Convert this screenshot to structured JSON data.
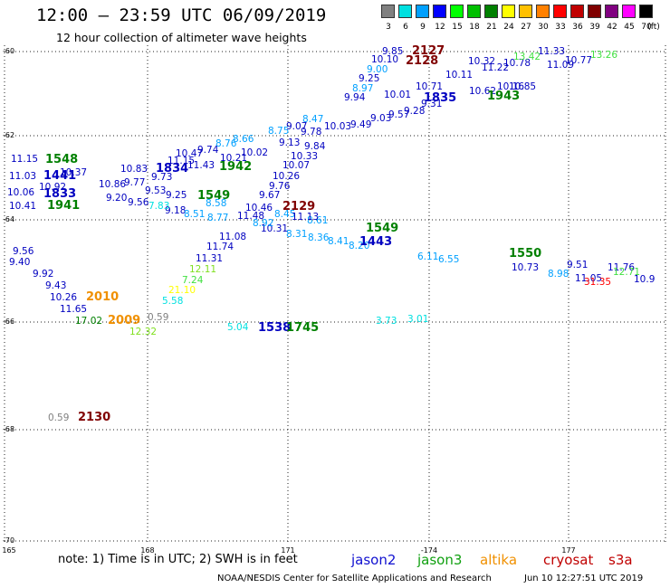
{
  "header": {
    "title": "12:00 – 23:59 UTC 06/09/2019",
    "subtitle": "12 hour collection of altimeter wave heights"
  },
  "colorbar": {
    "unit": "(ft)",
    "items": [
      {
        "label": "3",
        "color": "#808080"
      },
      {
        "label": "6",
        "color": "#00e0e0"
      },
      {
        "label": "9",
        "color": "#00a0ff"
      },
      {
        "label": "12",
        "color": "#0000ff"
      },
      {
        "label": "15",
        "color": "#00ff00"
      },
      {
        "label": "18",
        "color": "#00c000"
      },
      {
        "label": "21",
        "color": "#008000"
      },
      {
        "label": "24",
        "color": "#ffff00"
      },
      {
        "label": "27",
        "color": "#ffc000"
      },
      {
        "label": "30",
        "color": "#ff8000"
      },
      {
        "label": "33",
        "color": "#ff0000"
      },
      {
        "label": "36",
        "color": "#c00000"
      },
      {
        "label": "39",
        "color": "#800000"
      },
      {
        "label": "42",
        "color": "#800080"
      },
      {
        "label": "45",
        "color": "#ff00ff"
      },
      {
        "label": "70",
        "color": "#000000"
      }
    ]
  },
  "axes": {
    "lat_labels": [
      "-60",
      "-62",
      "-64",
      "-66",
      "-68",
      "-70"
    ],
    "lon_labels": [
      "165",
      "168",
      "171",
      "-174",
      "177"
    ]
  },
  "footer": {
    "note": "note: 1) Time is in UTC; 2) SWH is in feet",
    "satellites": [
      {
        "name": "jason2",
        "color": "#1010d0"
      },
      {
        "name": "jason3",
        "color": "#10a010"
      },
      {
        "name": "altika",
        "color": "#f09000"
      },
      {
        "name": "cryosat",
        "color": "#c00000"
      },
      {
        "name": "s3a",
        "color": "#c00000"
      }
    ],
    "credit": "NOAA/NESDIS Center for Satellite Applications and Research",
    "timestamp": "Jun 10 12:27:51 UTC 2019"
  },
  "tracks": {
    "times": [
      {
        "text": "2127",
        "color": "#800000"
      },
      {
        "text": "2128",
        "color": "#800000"
      },
      {
        "text": "1548",
        "color": "#008000"
      },
      {
        "text": "1441",
        "color": "#0000c0"
      },
      {
        "text": "1834",
        "color": "#0000c0"
      },
      {
        "text": "1942",
        "color": "#008000"
      },
      {
        "text": "1835",
        "color": "#0000c0"
      },
      {
        "text": "1943",
        "color": "#008000"
      },
      {
        "text": "1833",
        "color": "#0000c0"
      },
      {
        "text": "1941",
        "color": "#008000"
      },
      {
        "text": "1549",
        "color": "#008000"
      },
      {
        "text": "2129",
        "color": "#800000"
      },
      {
        "text": "1549",
        "color": "#008000"
      },
      {
        "text": "1443",
        "color": "#0000c0"
      },
      {
        "text": "1550",
        "color": "#008000"
      },
      {
        "text": "2010",
        "color": "#f09000"
      },
      {
        "text": "2009",
        "color": "#f09000"
      },
      {
        "text": "1538",
        "color": "#0000c0"
      },
      {
        "text": "1745",
        "color": "#008000"
      },
      {
        "text": "2130",
        "color": "#800000"
      }
    ],
    "swh_values": [
      {
        "text": "9.85",
        "color": "#0000c0"
      },
      {
        "text": "10.10",
        "color": "#0000c0"
      },
      {
        "text": "9.00",
        "color": "#00a0ff"
      },
      {
        "text": "9.25",
        "color": "#0000c0"
      },
      {
        "text": "8.97",
        "color": "#00a0ff"
      },
      {
        "text": "9.94",
        "color": "#0000c0"
      },
      {
        "text": "10.78",
        "color": "#0000c0"
      },
      {
        "text": "11.33",
        "color": "#0000c0"
      },
      {
        "text": "13.42",
        "color": "#40e040"
      },
      {
        "text": "13.26",
        "color": "#40e040"
      },
      {
        "text": "10.77",
        "color": "#0000c0"
      },
      {
        "text": "11.09",
        "color": "#0000c0"
      },
      {
        "text": "11.22",
        "color": "#0000c0"
      },
      {
        "text": "10.85",
        "color": "#0000c0"
      },
      {
        "text": "10.16",
        "color": "#0000c0"
      },
      {
        "text": "10.62",
        "color": "#0000c0"
      },
      {
        "text": "9.57",
        "color": "#0000c0"
      },
      {
        "text": "9.28",
        "color": "#0000c0"
      },
      {
        "text": "9.31",
        "color": "#0000c0"
      },
      {
        "text": "11.15",
        "color": "#0000c0"
      },
      {
        "text": "11.03",
        "color": "#0000c0"
      },
      {
        "text": "10.06",
        "color": "#0000c0"
      },
      {
        "text": "10.41",
        "color": "#0000c0"
      },
      {
        "text": "10.83",
        "color": "#0000c0"
      },
      {
        "text": "11.15",
        "color": "#0000c0"
      },
      {
        "text": "10.47",
        "color": "#0000c0"
      },
      {
        "text": "9.74",
        "color": "#0000c0"
      },
      {
        "text": "8.76",
        "color": "#00a0ff"
      },
      {
        "text": "8.66",
        "color": "#00a0ff"
      },
      {
        "text": "9.73",
        "color": "#0000c0"
      },
      {
        "text": "10.21",
        "color": "#0000c0"
      },
      {
        "text": "10.02",
        "color": "#0000c0"
      },
      {
        "text": "9.53",
        "color": "#0000c0"
      },
      {
        "text": "9.25",
        "color": "#0000c0"
      },
      {
        "text": "9.18",
        "color": "#0000c0"
      },
      {
        "text": "9.20",
        "color": "#0000c0"
      },
      {
        "text": "9.56",
        "color": "#0000c0"
      },
      {
        "text": "7.83",
        "color": "#00e0e0"
      },
      {
        "text": "8.51",
        "color": "#00a0ff"
      },
      {
        "text": "8.58",
        "color": "#00a0ff"
      },
      {
        "text": "8.77",
        "color": "#00a0ff"
      },
      {
        "text": "9.67",
        "color": "#0000c0"
      },
      {
        "text": "9.76",
        "color": "#0000c0"
      },
      {
        "text": "10.26",
        "color": "#0000c0"
      },
      {
        "text": "10.07",
        "color": "#0000c0"
      },
      {
        "text": "10.33",
        "color": "#0000c0"
      },
      {
        "text": "9.84",
        "color": "#0000c0"
      },
      {
        "text": "9.13",
        "color": "#0000c0"
      },
      {
        "text": "9.07",
        "color": "#0000c0"
      },
      {
        "text": "8.75",
        "color": "#00a0ff"
      },
      {
        "text": "10.46",
        "color": "#0000c0"
      },
      {
        "text": "11.48",
        "color": "#0000c0"
      },
      {
        "text": "11.08",
        "color": "#0000c0"
      },
      {
        "text": "11.74",
        "color": "#0000c0"
      },
      {
        "text": "11.31",
        "color": "#0000c0"
      },
      {
        "text": "12.11",
        "color": "#80e020"
      },
      {
        "text": "7.24",
        "color": "#40e040"
      },
      {
        "text": "21.10",
        "color": "#ffff00"
      },
      {
        "text": "5.58",
        "color": "#00e0e0"
      },
      {
        "text": "10.31",
        "color": "#0000c0"
      },
      {
        "text": "8.31",
        "color": "#00a0ff"
      },
      {
        "text": "8.36",
        "color": "#00a0ff"
      },
      {
        "text": "8.41",
        "color": "#00a0ff"
      },
      {
        "text": "8.20",
        "color": "#00a0ff"
      },
      {
        "text": "8.61",
        "color": "#00a0ff"
      },
      {
        "text": "6.11",
        "color": "#00a0ff"
      },
      {
        "text": "6.55",
        "color": "#00a0ff"
      },
      {
        "text": "10.73",
        "color": "#0000c0"
      },
      {
        "text": "8.98",
        "color": "#00a0ff"
      },
      {
        "text": "9.51",
        "color": "#0000c0"
      },
      {
        "text": "11.05",
        "color": "#0000c0"
      },
      {
        "text": "11.76",
        "color": "#0000c0"
      },
      {
        "text": "31.35",
        "color": "#ff0000"
      },
      {
        "text": "12.71",
        "color": "#40e040"
      },
      {
        "text": "10.9",
        "color": "#0000c0"
      },
      {
        "text": "9.56",
        "color": "#0000c0"
      },
      {
        "text": "9.40",
        "color": "#0000c0"
      },
      {
        "text": "9.92",
        "color": "#0000c0"
      },
      {
        "text": "9.43",
        "color": "#0000c0"
      },
      {
        "text": "10.26",
        "color": "#0000c0"
      },
      {
        "text": "11.65",
        "color": "#0000c0"
      },
      {
        "text": "17.02",
        "color": "#008000"
      },
      {
        "text": "12.32",
        "color": "#80e020"
      },
      {
        "text": "0.59",
        "color": "#808080"
      },
      {
        "text": "0.59",
        "color": "#808080"
      },
      {
        "text": "5.04",
        "color": "#00e0e0"
      },
      {
        "text": "3.73",
        "color": "#00e0e0"
      },
      {
        "text": "3.01",
        "color": "#00e0e0"
      },
      {
        "text": "8.47",
        "color": "#00a0ff"
      },
      {
        "text": "9.78",
        "color": "#0000c0"
      },
      {
        "text": "10.03",
        "color": "#0000c0"
      },
      {
        "text": "9.49",
        "color": "#0000c0"
      },
      {
        "text": "9.03",
        "color": "#0000c0"
      },
      {
        "text": "10.01",
        "color": "#0000c0"
      },
      {
        "text": "10.71",
        "color": "#0000c0"
      },
      {
        "text": "10.11",
        "color": "#0000c0"
      },
      {
        "text": "10.32",
        "color": "#0000c0"
      },
      {
        "text": "11.43",
        "color": "#0000c0"
      },
      {
        "text": "10.37",
        "color": "#0000c0"
      },
      {
        "text": "10.92",
        "color": "#0000c0"
      },
      {
        "text": "10.86",
        "color": "#0000c0"
      },
      {
        "text": "9.77",
        "color": "#0000c0"
      },
      {
        "text": "8.45",
        "color": "#00a0ff"
      },
      {
        "text": "8.92",
        "color": "#00a0ff"
      },
      {
        "text": "11.13",
        "color": "#0000c0"
      },
      {
        "text": "8.84",
        "color": "#00a0ff"
      }
    ]
  }
}
